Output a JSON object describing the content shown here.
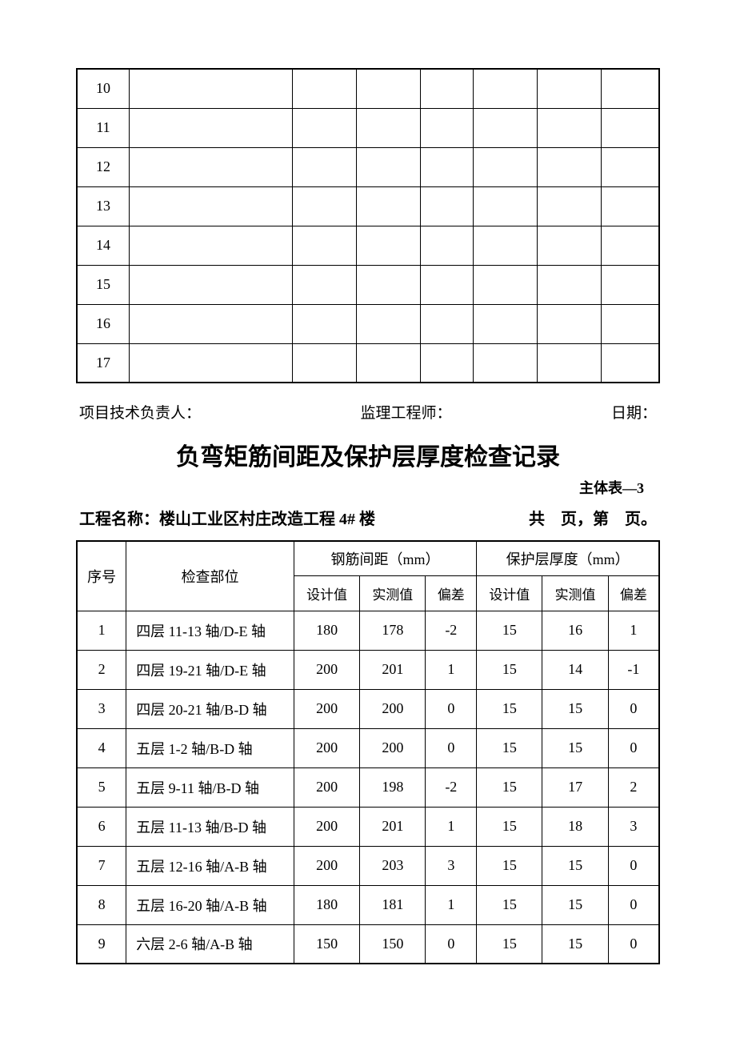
{
  "table1": {
    "col_widths_pct": [
      9,
      28,
      11,
      11,
      9,
      11,
      11,
      10
    ],
    "rows": [
      [
        "10",
        "",
        "",
        "",
        "",
        "",
        "",
        ""
      ],
      [
        "11",
        "",
        "",
        "",
        "",
        "",
        "",
        ""
      ],
      [
        "12",
        "",
        "",
        "",
        "",
        "",
        "",
        ""
      ],
      [
        "13",
        "",
        "",
        "",
        "",
        "",
        "",
        ""
      ],
      [
        "14",
        "",
        "",
        "",
        "",
        "",
        "",
        ""
      ],
      [
        "15",
        "",
        "",
        "",
        "",
        "",
        "",
        ""
      ],
      [
        "16",
        "",
        "",
        "",
        "",
        "",
        "",
        ""
      ],
      [
        "17",
        "",
        "",
        "",
        "",
        "",
        "",
        ""
      ]
    ]
  },
  "signatures": {
    "tech_lead": "项目技术负责人：",
    "supervisor": "监理工程师：",
    "date": "日期："
  },
  "title": "负弯矩筋间距及保护层厚度检查记录",
  "subtitle": "主体表—3",
  "project_name_label": "工程名称：",
  "project_name_value": "楼山工业区村庄改造工程 4# 楼",
  "page_info": "共　页，第　页。",
  "table2": {
    "header": {
      "seq": "序号",
      "location": "检查部位",
      "spacing": "钢筋间距（mm）",
      "cover": "保护层厚度（mm）",
      "design": "设计值",
      "measured": "实测值",
      "deviation": "偏差"
    },
    "rows": [
      {
        "seq": "1",
        "loc": "四层 11-13 轴/D-E 轴",
        "sd": "180",
        "sm": "178",
        "sv": "-2",
        "cd": "15",
        "cm": "16",
        "cv": "1"
      },
      {
        "seq": "2",
        "loc": "四层 19-21 轴/D-E 轴",
        "sd": "200",
        "sm": "201",
        "sv": "1",
        "cd": "15",
        "cm": "14",
        "cv": "-1"
      },
      {
        "seq": "3",
        "loc": "四层 20-21 轴/B-D 轴",
        "sd": "200",
        "sm": "200",
        "sv": "0",
        "cd": "15",
        "cm": "15",
        "cv": "0"
      },
      {
        "seq": "4",
        "loc": "五层 1-2 轴/B-D 轴",
        "sd": "200",
        "sm": "200",
        "sv": "0",
        "cd": "15",
        "cm": "15",
        "cv": "0"
      },
      {
        "seq": "5",
        "loc": "五层 9-11 轴/B-D 轴",
        "sd": "200",
        "sm": "198",
        "sv": "-2",
        "cd": "15",
        "cm": "17",
        "cv": "2"
      },
      {
        "seq": "6",
        "loc": "五层 11-13 轴/B-D 轴",
        "sd": "200",
        "sm": "201",
        "sv": "1",
        "cd": "15",
        "cm": "18",
        "cv": "3"
      },
      {
        "seq": "7",
        "loc": "五层 12-16 轴/A-B 轴",
        "sd": "200",
        "sm": "203",
        "sv": "3",
        "cd": "15",
        "cm": "15",
        "cv": "0"
      },
      {
        "seq": "8",
        "loc": "五层 16-20 轴/A-B 轴",
        "sd": "180",
        "sm": "181",
        "sv": "1",
        "cd": "15",
        "cm": "15",
        "cv": "0"
      },
      {
        "seq": "9",
        "loc": "六层 2-6 轴/A-B 轴",
        "sd": "150",
        "sm": "150",
        "sv": "0",
        "cd": "15",
        "cm": "15",
        "cv": "0"
      }
    ]
  }
}
